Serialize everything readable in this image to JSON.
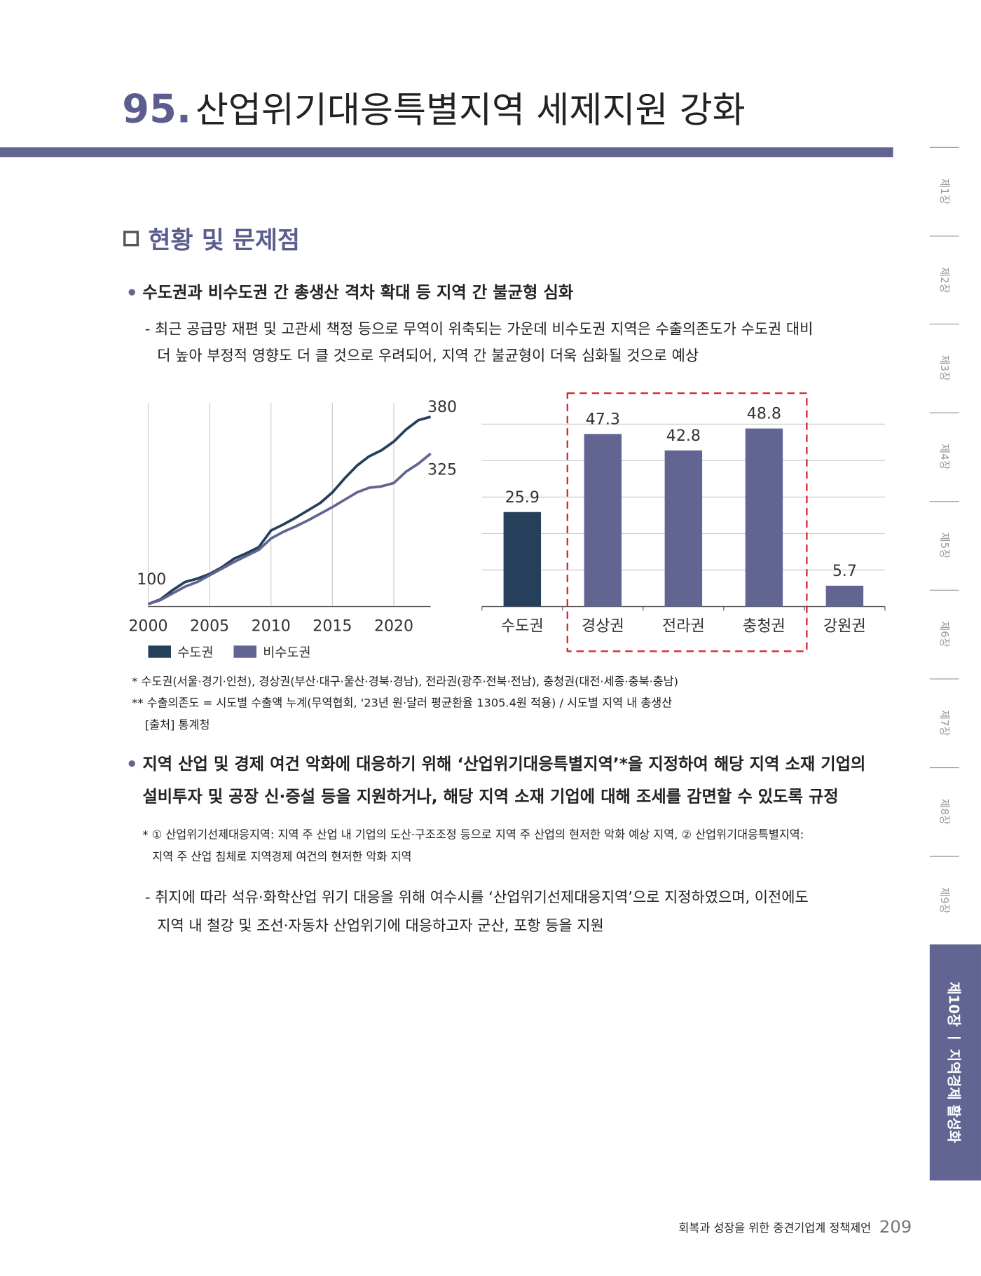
{
  "header": {
    "number": "95.",
    "title": "산업위기대응특별지역 세제지원 강화"
  },
  "section": {
    "title": "현황 및 문제점"
  },
  "bullet_1": {
    "lines": [
      "수도권과 비수도권 간 총생산 격차 확대 등 지역 간 불균형 심화"
    ]
  },
  "detail_1": {
    "lines": [
      "- 최근 공급망 재편 및 고관세 책정 등으로 무역이 위축되는 가운데 비수도권 지역은 수출의존도가 수도권 대비",
      "더 높아 부정적 영향도 더 클 것으로 우려되어, 지역 간 불균형이 더욱 심화될 것으로 예상"
    ]
  },
  "chart_data": [
    {
      "type": "line",
      "x": [
        2000,
        2001,
        2002,
        2003,
        2004,
        2005,
        2006,
        2007,
        2008,
        2009,
        2010,
        2011,
        2012,
        2013,
        2014,
        2015,
        2016,
        2017,
        2018,
        2019,
        2020,
        2021,
        2022,
        2023
      ],
      "xlim": [
        2000,
        2023
      ],
      "xticks": [
        2000,
        2005,
        2010,
        2015,
        2020
      ],
      "ylim": [
        100,
        380
      ],
      "grid": true,
      "legend": "bottom",
      "series": [
        {
          "name": "수도권",
          "color": "#263f5a",
          "values": [
            100,
            107,
            121,
            133,
            138,
            145,
            155,
            168,
            176,
            185,
            210,
            219,
            229,
            240,
            251,
            267,
            288,
            307,
            321,
            330,
            343,
            361,
            375,
            380
          ]
        },
        {
          "name": "비수도권",
          "color": "#626591",
          "values": [
            100,
            106,
            116,
            126,
            133,
            143,
            153,
            163,
            172,
            181,
            198,
            208,
            216,
            225,
            235,
            245,
            256,
            267,
            274,
            276,
            281,
            298,
            310,
            325
          ]
        }
      ]
    },
    {
      "type": "bar",
      "categories": [
        "수도권",
        "경상권",
        "전라권",
        "충청권",
        "강원권"
      ],
      "values": [
        25.9,
        47.3,
        42.8,
        48.8,
        5.7
      ],
      "colors": [
        "#263f5a",
        "#626591",
        "#626591",
        "#626591",
        "#626591"
      ],
      "ylim": [
        0,
        50
      ],
      "yticks": [
        0,
        10,
        20,
        30,
        40,
        50
      ],
      "grid": true
    }
  ],
  "notes": [
    "* 수도권(서울·경기·인천), 경상권(부산·대구·울산·경북·경남), 전라권(광주·전북·전남), 충청권(대전·세종·충북·충남)",
    "** 수출의존도 = 시도별 수출액 누계(무역협회, '23년 원·달러 평균환율 1305.4원 적용) / 시도별 지역 내 총생산",
    "[출처] 통계청"
  ],
  "bullet_2": {
    "lines": [
      "지역 산업 및 경제 여건 악화에 대응하기 위해 ‘산업위기대응특별지역’*을 지정하여 해당 지역 소재 기업의",
      "설비투자 및 공장 신·증설 등을 지원하거나, 해당 지역 소재 기업에 대해 조세를 감면할 수 있도록 규정"
    ]
  },
  "footnote_2": {
    "lines": [
      "* ① 산업위기선제대응지역: 지역 주 산업 내 기업의 도산·구조조정 등으로 지역 주 산업의 현저한 악화 예상 지역, ② 산업위기대응특별지역:",
      "지역 주 산업 침체로 지역경제 여건의 현저한 악화 지역"
    ]
  },
  "detail_2": {
    "lines": [
      "- 취지에 따라 석유·화학산업 위기 대응을 위해 여수시를 ‘산업위기선제대응지역’으로 지정하였으며, 이전에도",
      "지역 내 철강 및 조선·자동차 산업위기에 대응하고자 군산, 포항 등을 지원"
    ]
  },
  "sidebar": {
    "chapters": [
      "제1장",
      "제2장",
      "제3장",
      "제4장",
      "제5장",
      "제6장",
      "제7장",
      "제8장",
      "제9장"
    ],
    "current": "제10장 ㅣ 지역경제 활성화"
  },
  "footer": {
    "text": "회복과 성장을 위한 중견기업계 정책제언",
    "page": 209
  }
}
